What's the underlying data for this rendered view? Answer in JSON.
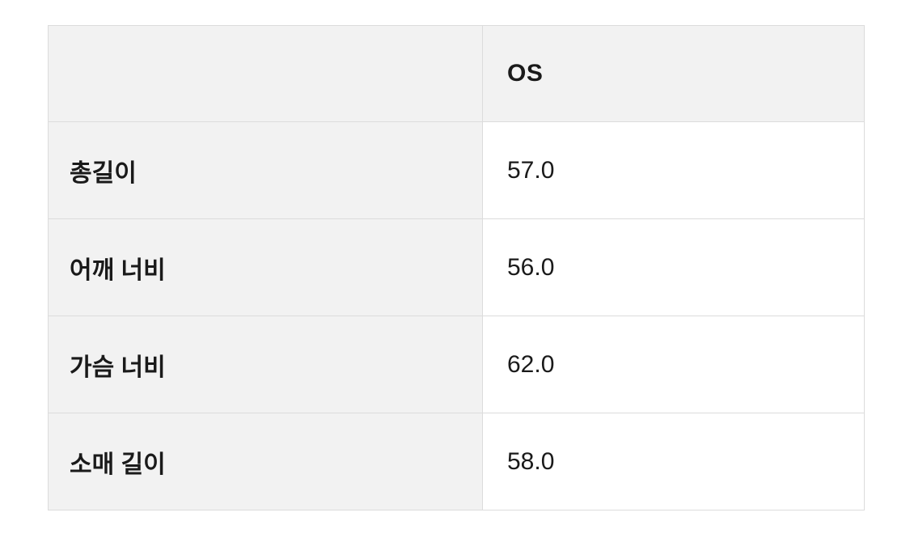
{
  "size_chart": {
    "header": {
      "corner": "",
      "columns": [
        "OS"
      ]
    },
    "rows": [
      {
        "label": "총길이",
        "values": [
          "57.0"
        ]
      },
      {
        "label": "어깨 너비",
        "values": [
          "56.0"
        ]
      },
      {
        "label": "가슴 너비",
        "values": [
          "62.0"
        ]
      },
      {
        "label": "소매 길이",
        "values": [
          "58.0"
        ]
      }
    ],
    "colors": {
      "header_and_label_bg": "#f2f2f2",
      "value_bg": "#ffffff",
      "border": "#dcdcdc",
      "text": "#1a1a1a",
      "page_bg": "#ffffff"
    }
  }
}
